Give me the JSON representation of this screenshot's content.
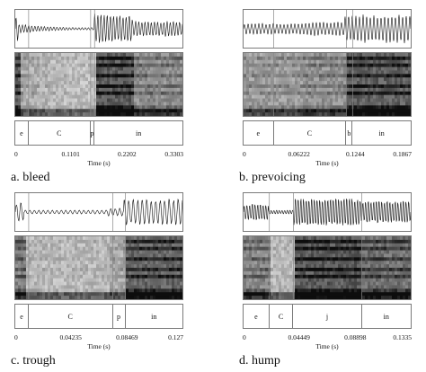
{
  "panels": [
    {
      "id": "a",
      "caption": "a. bleed",
      "segments": [
        {
          "label": "e",
          "start": 0,
          "end": 0.0264
        },
        {
          "label": "C",
          "start": 0.0264,
          "end": 0.1489
        },
        {
          "label": "p",
          "start": 0.1489,
          "end": 0.1567
        },
        {
          "label": "in",
          "start": 0.1567,
          "end": 0.3303
        }
      ],
      "ticks": [
        "0",
        "0.1101",
        "0.2202",
        "0.3303"
      ],
      "axis_label": "Time (s)"
    },
    {
      "id": "b",
      "caption": "b. prevoicing",
      "segments": [
        {
          "label": "e",
          "start": 0,
          "end": 0.0337
        },
        {
          "label": "C",
          "start": 0.0337,
          "end": 0.1148
        },
        {
          "label": "b",
          "start": 0.1148,
          "end": 0.1218
        },
        {
          "label": "in",
          "start": 0.1218,
          "end": 0.1867
        }
      ],
      "ticks": [
        "0",
        "0.06222",
        "0.1244",
        "0.1867"
      ],
      "axis_label": "Time (s)"
    },
    {
      "id": "c",
      "caption": "c. trough",
      "segments": [
        {
          "label": "e",
          "start": 0,
          "end": 0.0102
        },
        {
          "label": "C",
          "start": 0.0102,
          "end": 0.0741
        },
        {
          "label": "p",
          "start": 0.0741,
          "end": 0.0837
        },
        {
          "label": "in",
          "start": 0.0837,
          "end": 0.127
        }
      ],
      "ticks": [
        "0",
        "0.04235",
        "0.08469",
        "0.127"
      ],
      "axis_label": "Time (s)"
    },
    {
      "id": "d",
      "caption": "d. hump",
      "segments": [
        {
          "label": "e",
          "start": 0,
          "end": 0.0206
        },
        {
          "label": "C",
          "start": 0.0206,
          "end": 0.0398
        },
        {
          "label": "j",
          "start": 0.0398,
          "end": 0.0944
        },
        {
          "label": "in",
          "start": 0.0944,
          "end": 0.1335
        }
      ],
      "ticks": [
        "0",
        "0.04449",
        "0.08898",
        "0.1335"
      ],
      "axis_label": "Time (s)"
    }
  ]
}
